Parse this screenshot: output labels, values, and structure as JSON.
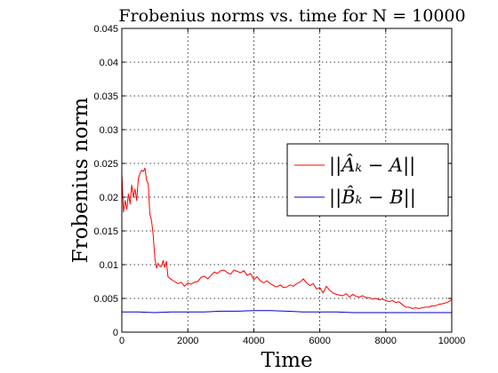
{
  "chart_data": {
    "type": "line",
    "title": "Frobenius norms vs. time for N = 10000",
    "xlabel": "Time",
    "ylabel": "Frobenius norm",
    "xlim": [
      0,
      10000
    ],
    "ylim": [
      0,
      0.045
    ],
    "grid": true,
    "legend_position": "right",
    "x_ticks": [
      "0",
      "2000",
      "4000",
      "6000",
      "8000",
      "10000"
    ],
    "y_ticks": [
      "0",
      "0.005",
      "0.01",
      "0.015",
      "0.02",
      "0.025",
      "0.03",
      "0.035",
      "0.04",
      "0.045"
    ],
    "series": [
      {
        "name": "||Âₖ − A||",
        "color": "#ff0000",
        "x": [
          0,
          50,
          100,
          150,
          200,
          250,
          300,
          350,
          400,
          450,
          500,
          550,
          600,
          650,
          700,
          750,
          800,
          850,
          900,
          950,
          1000,
          1050,
          1100,
          1150,
          1200,
          1250,
          1300,
          1350,
          1400,
          1500,
          1600,
          1700,
          1800,
          1900,
          2000,
          2100,
          2200,
          2300,
          2400,
          2500,
          2600,
          2700,
          2800,
          2900,
          3000,
          3100,
          3200,
          3300,
          3400,
          3500,
          3600,
          3700,
          3800,
          3900,
          4000,
          4100,
          4200,
          4300,
          4400,
          4500,
          4600,
          4700,
          4800,
          4900,
          5000,
          5100,
          5200,
          5300,
          5400,
          5500,
          5600,
          5700,
          5800,
          5900,
          6000,
          6100,
          6200,
          6300,
          6400,
          6500,
          6600,
          6700,
          6800,
          6900,
          7000,
          7100,
          7200,
          7300,
          7400,
          7500,
          7600,
          7700,
          7800,
          7900,
          8000,
          8100,
          8200,
          8300,
          8400,
          8500,
          8600,
          8700,
          8800,
          8900,
          9000,
          9100,
          9200,
          9300,
          9400,
          9500,
          9600,
          9700,
          9800,
          9900,
          10000
        ],
        "y": [
          0.0235,
          0.0178,
          0.0195,
          0.0182,
          0.0205,
          0.019,
          0.0218,
          0.02,
          0.0212,
          0.0195,
          0.0228,
          0.0235,
          0.024,
          0.0238,
          0.0243,
          0.0225,
          0.022,
          0.0175,
          0.0165,
          0.0145,
          0.011,
          0.0095,
          0.0102,
          0.0098,
          0.0097,
          0.0106,
          0.0096,
          0.0105,
          0.0082,
          0.0078,
          0.0075,
          0.0072,
          0.0074,
          0.0068,
          0.0073,
          0.0071,
          0.0074,
          0.0075,
          0.0081,
          0.0083,
          0.0079,
          0.0084,
          0.0089,
          0.0087,
          0.0091,
          0.0092,
          0.0088,
          0.0086,
          0.0092,
          0.009,
          0.0088,
          0.0091,
          0.0084,
          0.0087,
          0.0078,
          0.0082,
          0.0076,
          0.0073,
          0.0076,
          0.0072,
          0.0069,
          0.0067,
          0.007,
          0.0066,
          0.0067,
          0.007,
          0.0068,
          0.0072,
          0.0074,
          0.0079,
          0.0073,
          0.0069,
          0.0072,
          0.0064,
          0.0066,
          0.0058,
          0.0068,
          0.0062,
          0.0058,
          0.0056,
          0.0055,
          0.0054,
          0.0057,
          0.0052,
          0.0056,
          0.0053,
          0.0052,
          0.0054,
          0.0051,
          0.0051,
          0.0049,
          0.005,
          0.0048,
          0.0049,
          0.0047,
          0.0045,
          0.0047,
          0.0044,
          0.0045,
          0.0041,
          0.0037,
          0.0037,
          0.0035,
          0.0036,
          0.0035,
          0.0036,
          0.0037,
          0.0037,
          0.0039,
          0.0039,
          0.0041,
          0.0042,
          0.0043,
          0.0045,
          0.0048
        ]
      },
      {
        "name": "||B̂ₖ − B||",
        "color": "#0000cc",
        "x": [
          0,
          500,
          1000,
          1500,
          2000,
          2500,
          3000,
          3500,
          4000,
          4500,
          5000,
          5500,
          6000,
          6500,
          7000,
          7500,
          8000,
          8500,
          9000,
          9500,
          10000
        ],
        "y": [
          0.003,
          0.003,
          0.0029,
          0.003,
          0.003,
          0.003,
          0.0031,
          0.0031,
          0.0032,
          0.0032,
          0.0031,
          0.003,
          0.003,
          0.003,
          0.0029,
          0.0029,
          0.0029,
          0.0029,
          0.0029,
          0.0029,
          0.0029
        ]
      }
    ]
  }
}
